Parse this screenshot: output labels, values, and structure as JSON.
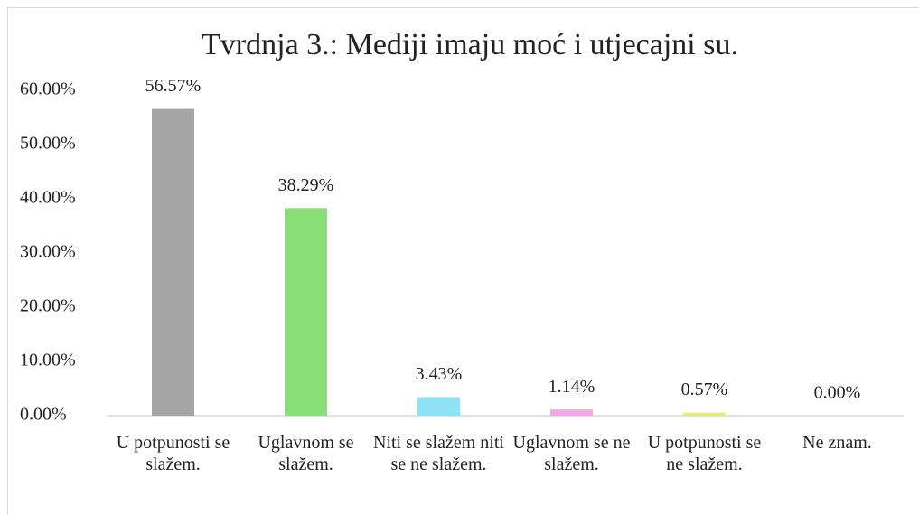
{
  "chart_data": {
    "type": "bar",
    "title": "Tvrdnja 3.: Mediji imaju moć i utjecajni su.",
    "categories": [
      "U potpunosti se slažem.",
      "Uglavnom se slažem.",
      "Niti se slažem niti se ne slažem.",
      "Uglavnom se ne slažem.",
      "U potpunosti se ne slažem.",
      "Ne znam."
    ],
    "values": [
      56.57,
      38.29,
      3.43,
      1.14,
      0.57,
      0
    ],
    "value_labels": [
      "56.57%",
      "38.29%",
      "3.43%",
      "1.14%",
      "0.57%",
      "0.00%"
    ],
    "colors": [
      "#a5a5a5",
      "#8ade78",
      "#8de3f5",
      "#f4a6e8",
      "#e8ee6a",
      "#ffffff"
    ],
    "ylim": [
      0,
      60
    ],
    "yticks": [
      {
        "value": 0,
        "label": "0.00%"
      },
      {
        "value": 10,
        "label": "10.00%"
      },
      {
        "value": 20,
        "label": "20.00%"
      },
      {
        "value": 30,
        "label": "30.00%"
      },
      {
        "value": 40,
        "label": "40.00%"
      },
      {
        "value": 50,
        "label": "50.00%"
      },
      {
        "value": 60,
        "label": "60.00%"
      }
    ],
    "grid": false
  }
}
